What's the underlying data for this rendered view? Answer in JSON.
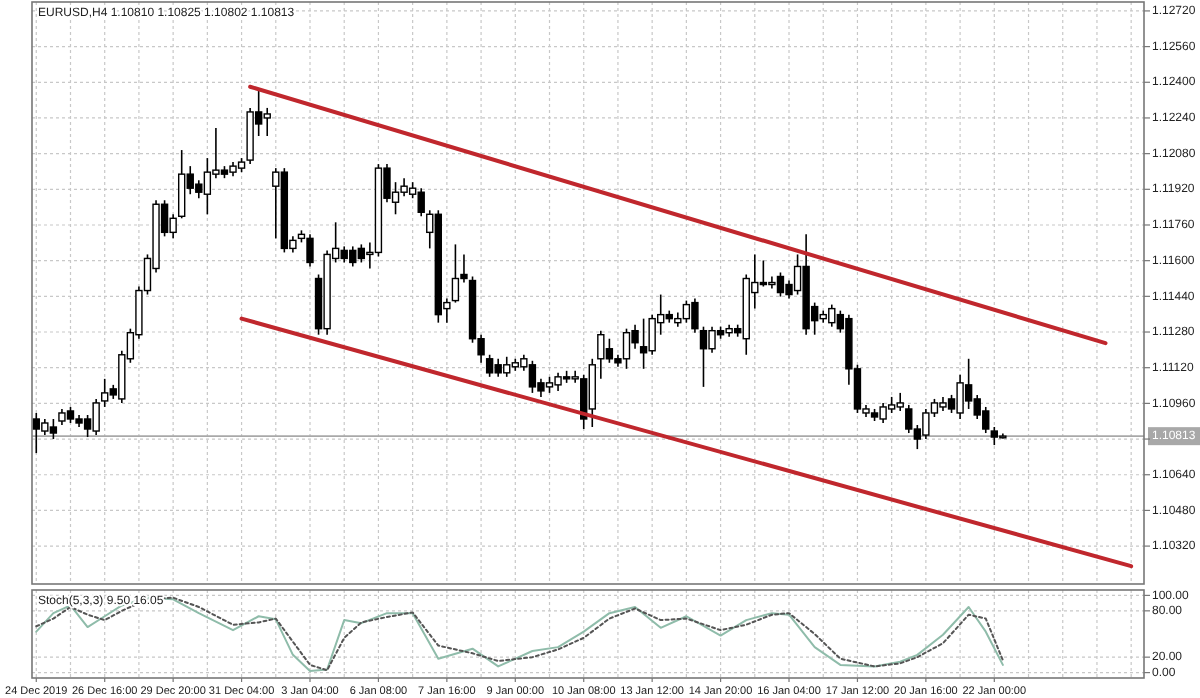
{
  "chart_data": [
    {
      "type": "candlestick",
      "title": "EURUSD,H4 1.10810 1.10825 1.10802 1.10813",
      "categories": [
        null,
        null,
        null,
        null,
        null,
        null,
        null,
        null,
        null,
        null,
        null,
        null,
        null,
        null,
        null,
        null,
        null,
        null,
        null,
        null,
        null,
        null,
        null,
        null,
        null,
        null,
        null,
        null,
        null,
        null,
        null,
        null,
        null,
        null,
        null,
        null,
        null,
        null,
        null,
        null,
        null,
        null,
        null,
        null,
        null,
        null,
        null,
        null,
        null,
        null,
        null,
        null,
        null,
        null,
        null,
        null,
        null,
        null,
        null,
        null,
        null,
        null,
        null,
        null,
        null,
        null,
        null,
        null,
        null,
        null,
        null,
        null,
        null,
        null,
        null,
        null,
        null,
        null,
        null,
        null,
        null,
        null,
        null,
        null,
        null,
        null,
        null,
        null,
        null,
        null,
        null,
        null,
        null,
        null,
        null,
        null,
        null,
        null,
        null,
        null,
        null,
        null,
        null,
        null,
        null,
        null,
        null,
        null,
        null,
        null,
        null,
        null,
        null,
        null,
        null,
        null,
        null,
        null,
        null,
        null,
        null,
        null,
        null,
        null,
        null,
        null,
        null,
        null,
        null,
        null
      ],
      "ohlc": [
        [
          1.1089,
          1.10917,
          1.10737,
          1.10845
        ],
        [
          1.10836,
          1.1089,
          1.10818,
          1.10872
        ],
        [
          1.10854,
          1.1089,
          1.108,
          1.10827
        ],
        [
          1.10881,
          1.10935,
          1.10863,
          1.10917
        ],
        [
          1.10926,
          1.10944,
          1.10872,
          1.1089
        ],
        [
          1.1089,
          1.10908,
          1.10854,
          1.10872
        ],
        [
          1.1089,
          1.10908,
          1.10809,
          1.10845
        ],
        [
          1.10836,
          1.1098,
          1.10818,
          1.10962
        ],
        [
          1.10971,
          1.1107,
          1.10944,
          1.11007
        ],
        [
          1.11025,
          1.11043,
          1.1098,
          1.10998
        ],
        [
          1.1098,
          1.11196,
          1.10962,
          1.11178
        ],
        [
          1.1116,
          1.11295,
          1.11142,
          1.11277
        ],
        [
          1.11268,
          1.11484,
          1.1125,
          1.11466
        ],
        [
          1.11466,
          1.11628,
          1.11448,
          1.1161
        ],
        [
          1.11565,
          1.11871,
          1.11547,
          1.11853
        ],
        [
          1.11853,
          1.11871,
          1.11709,
          1.11727
        ],
        [
          1.11727,
          1.11808,
          1.117,
          1.1179
        ],
        [
          1.11799,
          1.12096,
          1.1179,
          1.11988
        ],
        [
          1.11988,
          1.12024,
          1.11898,
          1.11925
        ],
        [
          1.11943,
          1.11961,
          1.1188,
          1.11907
        ],
        [
          1.11898,
          1.1206,
          1.11808,
          1.11997
        ],
        [
          1.11988,
          1.12195,
          1.1197,
          1.12006
        ],
        [
          1.12006,
          1.12024,
          1.1197,
          1.11988
        ],
        [
          1.11997,
          1.12042,
          1.11979,
          1.12024
        ],
        [
          1.12015,
          1.1206,
          1.11997,
          1.12042
        ],
        [
          1.12051,
          1.12285,
          1.12033,
          1.12267
        ],
        [
          1.12267,
          1.12366,
          1.12159,
          1.12213
        ],
        [
          1.1224,
          1.12285,
          1.12159,
          1.12258
        ],
        [
          1.11934,
          1.12015,
          1.117,
          1.11997
        ],
        [
          1.11997,
          1.12015,
          1.11637,
          1.11655
        ],
        [
          1.11655,
          1.11709,
          1.11637,
          1.11691
        ],
        [
          1.117,
          1.11736,
          1.11682,
          1.11718
        ],
        [
          1.117,
          1.11718,
          1.11574,
          1.11592
        ],
        [
          1.1152,
          1.11538,
          1.11268,
          1.11295
        ],
        [
          1.11295,
          1.11646,
          1.11268,
          1.11628
        ],
        [
          1.1161,
          1.11772,
          1.11592,
          1.11655
        ],
        [
          1.11646,
          1.11664,
          1.11592,
          1.1161
        ],
        [
          1.11646,
          1.11664,
          1.11574,
          1.11592
        ],
        [
          1.11655,
          1.11673,
          1.11592,
          1.1161
        ],
        [
          1.11628,
          1.11682,
          1.11565,
          1.11637
        ],
        [
          1.11637,
          1.12033,
          1.11619,
          1.12015
        ],
        [
          1.12015,
          1.12033,
          1.11862,
          1.1188
        ],
        [
          1.11862,
          1.11952,
          1.11808,
          1.11907
        ],
        [
          1.11907,
          1.1197,
          1.11889,
          1.11934
        ],
        [
          1.11898,
          1.11952,
          1.1188,
          1.11925
        ],
        [
          1.11907,
          1.11925,
          1.11799,
          1.11817
        ],
        [
          1.11727,
          1.11826,
          1.11655,
          1.11808
        ],
        [
          1.11808,
          1.11826,
          1.11322,
          1.11358
        ],
        [
          1.11385,
          1.1143,
          1.11322,
          1.11412
        ],
        [
          1.11421,
          1.11673,
          1.11412,
          1.1152
        ],
        [
          1.11538,
          1.11628,
          1.11502,
          1.1152
        ],
        [
          1.11511,
          1.11529,
          1.11232,
          1.1125
        ],
        [
          1.1125,
          1.11268,
          1.11142,
          1.11178
        ],
        [
          1.1116,
          1.11178,
          1.11079,
          1.11097
        ],
        [
          1.11133,
          1.1116,
          1.11079,
          1.11097
        ],
        [
          1.11097,
          1.11169,
          1.11079,
          1.11133
        ],
        [
          1.11124,
          1.1116,
          1.11106,
          1.11142
        ],
        [
          1.11124,
          1.11178,
          1.11106,
          1.1116
        ],
        [
          1.11133,
          1.11151,
          1.11007,
          1.11034
        ],
        [
          1.11052,
          1.1107,
          1.10989,
          1.11016
        ],
        [
          1.11034,
          1.11079,
          1.11007,
          1.11052
        ],
        [
          1.11043,
          1.11097,
          1.11016,
          1.11079
        ],
        [
          1.11079,
          1.11106,
          1.11052,
          1.1107
        ],
        [
          1.1107,
          1.11106,
          1.11052,
          1.11079
        ],
        [
          1.1107,
          1.11088,
          1.10845,
          1.1089
        ],
        [
          1.10935,
          1.1116,
          1.10854,
          1.11133
        ],
        [
          1.1116,
          1.11286,
          1.1107,
          1.11268
        ],
        [
          1.11205,
          1.1125,
          1.11142,
          1.1116
        ],
        [
          1.1116,
          1.11178,
          1.11124,
          1.11142
        ],
        [
          1.1116,
          1.11295,
          1.11115,
          1.11277
        ],
        [
          1.11286,
          1.11313,
          1.11205,
          1.11232
        ],
        [
          1.11214,
          1.1134,
          1.11115,
          1.11187
        ],
        [
          1.11196,
          1.11358,
          1.11178,
          1.1134
        ],
        [
          1.11322,
          1.11448,
          1.11268,
          1.11358
        ],
        [
          1.11358,
          1.11376,
          1.11322,
          1.1134
        ],
        [
          1.11322,
          1.11367,
          1.11304,
          1.1134
        ],
        [
          1.1134,
          1.11421,
          1.11322,
          1.11403
        ],
        [
          1.11412,
          1.1143,
          1.11277,
          1.11295
        ],
        [
          1.11286,
          1.11304,
          1.11034,
          1.11205
        ],
        [
          1.11205,
          1.11304,
          1.11187,
          1.11286
        ],
        [
          1.11286,
          1.11304,
          1.1125,
          1.11268
        ],
        [
          1.11277,
          1.11313,
          1.11259,
          1.11295
        ],
        [
          1.11295,
          1.11313,
          1.11259,
          1.11277
        ],
        [
          1.1125,
          1.11538,
          1.11178,
          1.1152
        ],
        [
          1.11457,
          1.11628,
          1.11385,
          1.11502
        ],
        [
          1.11502,
          1.11601,
          1.11484,
          1.11493
        ],
        [
          1.11493,
          1.11529,
          1.11475,
          1.11502
        ],
        [
          1.11529,
          1.11547,
          1.11439,
          1.11457
        ],
        [
          1.11493,
          1.11511,
          1.1143,
          1.11448
        ],
        [
          1.11466,
          1.11628,
          1.11448,
          1.11574
        ],
        [
          1.11574,
          1.11718,
          1.11268,
          1.11295
        ],
        [
          1.11394,
          1.11412,
          1.11268,
          1.11331
        ],
        [
          1.1134,
          1.11376,
          1.11322,
          1.11358
        ],
        [
          1.11322,
          1.11403,
          1.11304,
          1.11385
        ],
        [
          1.11358,
          1.11376,
          1.11277,
          1.11295
        ],
        [
          1.1134,
          1.11358,
          1.11043,
          1.11115
        ],
        [
          1.11115,
          1.11133,
          1.10917,
          1.10935
        ],
        [
          1.10917,
          1.10953,
          1.10899,
          1.10935
        ],
        [
          1.10917,
          1.10935,
          1.10881,
          1.10899
        ],
        [
          1.1089,
          1.10962,
          1.10872,
          1.10944
        ],
        [
          1.10935,
          1.10989,
          1.10917,
          1.10953
        ],
        [
          1.10944,
          1.11007,
          1.10926,
          1.10962
        ],
        [
          1.10935,
          1.10953,
          1.10827,
          1.10845
        ],
        [
          1.10845,
          1.10863,
          1.10755,
          1.108
        ],
        [
          1.10818,
          1.10935,
          1.108,
          1.10917
        ],
        [
          1.10917,
          1.1098,
          1.10899,
          1.10962
        ],
        [
          1.10944,
          1.10989,
          1.10926,
          1.10962
        ],
        [
          1.1098,
          1.10998,
          1.10917,
          1.10935
        ],
        [
          1.10917,
          1.11088,
          1.1089,
          1.11052
        ],
        [
          1.11043,
          1.1116,
          1.10935,
          1.10971
        ],
        [
          1.1098,
          1.10998,
          1.1089,
          1.10908
        ],
        [
          1.10926,
          1.10944,
          1.10827,
          1.10845
        ],
        [
          1.10836,
          1.10854,
          1.10773,
          1.10809
        ],
        [
          1.1081,
          1.10825,
          1.10802,
          1.10813
        ],
        null,
        null,
        null,
        null,
        null,
        null,
        null,
        null,
        null,
        null,
        null,
        null,
        null,
        null,
        null,
        null
      ],
      "series": [
        {
          "type": "line",
          "color": "#c0272d",
          "values": [
            null,
            null,
            null,
            null,
            null,
            null,
            null,
            null,
            null,
            null,
            null,
            null,
            null,
            null,
            null,
            null,
            null,
            null,
            null,
            null,
            null,
            null,
            null,
            null,
            null,
            1.1238,
            null,
            null,
            null,
            null,
            null,
            null,
            null,
            null,
            null,
            null,
            null,
            null,
            null,
            null,
            null,
            null,
            null,
            null,
            null,
            null,
            null,
            null,
            null,
            null,
            null,
            null,
            null,
            null,
            null,
            null,
            null,
            null,
            null,
            null,
            null,
            null,
            null,
            null,
            null,
            null,
            null,
            null,
            null,
            null,
            null,
            null,
            null,
            null,
            null,
            null,
            null,
            null,
            null,
            null,
            null,
            null,
            null,
            null,
            null,
            null,
            null,
            null,
            null,
            null,
            null,
            null,
            null,
            null,
            null,
            null,
            null,
            null,
            null,
            null,
            null,
            null,
            null,
            null,
            null,
            null,
            null,
            null,
            null,
            null,
            null,
            null,
            null,
            null,
            null,
            null,
            null,
            null,
            null,
            null,
            null,
            null,
            null,
            null,
            null,
            1.1123,
            null,
            null,
            null,
            null
          ]
        },
        {
          "type": "line",
          "color": "#c0272d",
          "values": [
            null,
            null,
            null,
            null,
            null,
            null,
            null,
            null,
            null,
            null,
            null,
            null,
            null,
            null,
            null,
            null,
            null,
            null,
            null,
            null,
            null,
            null,
            null,
            null,
            1.1134,
            null,
            null,
            null,
            null,
            null,
            null,
            null,
            null,
            null,
            null,
            null,
            null,
            null,
            null,
            null,
            null,
            null,
            null,
            null,
            null,
            null,
            null,
            null,
            null,
            null,
            null,
            null,
            null,
            null,
            null,
            null,
            null,
            null,
            null,
            null,
            null,
            null,
            null,
            null,
            null,
            null,
            null,
            null,
            null,
            null,
            null,
            null,
            null,
            null,
            null,
            null,
            null,
            null,
            null,
            null,
            null,
            null,
            null,
            null,
            null,
            null,
            null,
            null,
            null,
            null,
            null,
            null,
            null,
            null,
            null,
            null,
            null,
            null,
            null,
            null,
            null,
            null,
            null,
            null,
            null,
            null,
            null,
            null,
            null,
            null,
            null,
            null,
            null,
            null,
            null,
            null,
            null,
            null,
            null,
            null,
            null,
            null,
            null,
            null,
            null,
            null,
            null,
            null,
            1.1023,
            null
          ]
        }
      ],
      "ref_lines": [
        {
          "axis": "y",
          "value": 1.10813,
          "label": "1.10813",
          "color": "#a8a8a8"
        }
      ],
      "ylim": [
        1.1015,
        1.1276
      ],
      "yticks": [
        {
          "value": 1.1032,
          "label": "1.10320"
        },
        {
          "value": 1.1048,
          "label": "1.10480"
        },
        {
          "value": 1.1064,
          "label": "1.10640"
        },
        {
          "value": 1.108,
          "label": null
        },
        {
          "value": 1.1096,
          "label": "1.10960"
        },
        {
          "value": 1.1112,
          "label": "1.11120"
        },
        {
          "value": 1.1128,
          "label": "1.11280"
        },
        {
          "value": 1.1144,
          "label": "1.11440"
        },
        {
          "value": 1.116,
          "label": "1.11600"
        },
        {
          "value": 1.1176,
          "label": "1.11760"
        },
        {
          "value": 1.1192,
          "label": "1.11920"
        },
        {
          "value": 1.1208,
          "label": "1.12080"
        },
        {
          "value": 1.1224,
          "label": "1.12240"
        },
        {
          "value": 1.124,
          "label": "1.12400"
        },
        {
          "value": 1.1256,
          "label": "1.12560"
        },
        {
          "value": 1.1272,
          "label": "1.12720"
        }
      ],
      "grid": true,
      "tick_labels": "y"
    },
    {
      "type": "line",
      "title": "Stoch(5,3,3) 9.50 16.05",
      "categories": [
        "24 Dec 2019",
        null,
        null,
        null,
        null,
        null,
        null,
        null,
        "26 Dec 16:00",
        null,
        null,
        null,
        null,
        null,
        null,
        null,
        "29 Dec 20:00",
        null,
        null,
        null,
        null,
        null,
        null,
        null,
        "31 Dec 04:00",
        null,
        null,
        null,
        null,
        null,
        null,
        null,
        "3 Jan 04:00",
        null,
        null,
        null,
        null,
        null,
        null,
        null,
        "6 Jan 08:00",
        null,
        null,
        null,
        null,
        null,
        null,
        null,
        "7 Jan 16:00",
        null,
        null,
        null,
        null,
        null,
        null,
        null,
        "9 Jan 00:00",
        null,
        null,
        null,
        null,
        null,
        null,
        null,
        "10 Jan 08:00",
        null,
        null,
        null,
        null,
        null,
        null,
        null,
        "13 Jan 12:00",
        null,
        null,
        null,
        null,
        null,
        null,
        null,
        "14 Jan 20:00",
        null,
        null,
        null,
        null,
        null,
        null,
        null,
        "16 Jan 04:00",
        null,
        null,
        null,
        null,
        null,
        null,
        null,
        "17 Jan 12:00",
        null,
        null,
        null,
        null,
        null,
        null,
        null,
        "20 Jan 16:00",
        null,
        null,
        null,
        null,
        null,
        null,
        null,
        "22 Jan 00:00",
        null,
        null,
        null,
        null,
        null,
        null,
        null,
        null,
        null,
        null,
        null,
        null,
        null,
        null,
        null,
        null,
        null
      ],
      "series": [
        {
          "color": "#8fbcaa",
          "line_style": "solid",
          "values": [
            53,
            null,
            77,
            null,
            87,
            null,
            59,
            null,
            73,
            null,
            87,
            null,
            null,
            97,
            null,
            null,
            95,
            null,
            null,
            77,
            null,
            null,
            null,
            55,
            null,
            null,
            73,
            null,
            69,
            null,
            23,
            null,
            2,
            null,
            4,
            null,
            68,
            null,
            64,
            null,
            null,
            77,
            null,
            null,
            77,
            null,
            null,
            18,
            null,
            null,
            null,
            31,
            null,
            null,
            8,
            null,
            null,
            null,
            28,
            null,
            null,
            33,
            null,
            null,
            53,
            null,
            null,
            77,
            null,
            null,
            85,
            null,
            null,
            58,
            null,
            null,
            73,
            null,
            null,
            null,
            48,
            null,
            null,
            68,
            null,
            null,
            77,
            null,
            75,
            null,
            null,
            33,
            null,
            null,
            10,
            null,
            null,
            null,
            8,
            null,
            null,
            14,
            null,
            23,
            null,
            null,
            49,
            null,
            null,
            85,
            null,
            53,
            null,
            10,
            null,
            null,
            null,
            null,
            null,
            null,
            null,
            null,
            null,
            null,
            null,
            null,
            null,
            null,
            null,
            null
          ]
        },
        {
          "color": "#555555",
          "line_style": "dotted",
          "values": [
            60,
            null,
            70,
            null,
            85,
            null,
            75,
            null,
            68,
            null,
            80,
            null,
            null,
            95,
            null,
            null,
            97,
            null,
            null,
            85,
            null,
            null,
            null,
            62,
            null,
            null,
            65,
            null,
            70,
            null,
            40,
            null,
            10,
            null,
            3,
            null,
            45,
            null,
            65,
            null,
            null,
            72,
            null,
            null,
            78,
            null,
            null,
            35,
            null,
            null,
            null,
            25,
            null,
            null,
            15,
            null,
            null,
            null,
            20,
            null,
            null,
            30,
            null,
            null,
            45,
            null,
            null,
            70,
            null,
            null,
            83,
            null,
            null,
            68,
            null,
            null,
            70,
            null,
            null,
            null,
            55,
            null,
            null,
            62,
            null,
            null,
            75,
            null,
            77,
            null,
            null,
            50,
            null,
            null,
            18,
            null,
            null,
            null,
            8,
            null,
            null,
            12,
            null,
            20,
            null,
            null,
            38,
            null,
            null,
            75,
            null,
            70,
            null,
            16,
            null,
            null,
            null,
            null,
            null,
            null,
            null,
            null,
            null,
            null,
            null,
            null,
            null,
            null,
            null,
            null
          ]
        }
      ],
      "ylim": [
        -7,
        107
      ],
      "yticks": [
        {
          "value": 0,
          "label": "0.00"
        },
        {
          "value": 20,
          "label": "20.00"
        },
        {
          "value": 80,
          "label": "80.00"
        },
        {
          "value": 100,
          "label": "100.00"
        }
      ],
      "grid": true
    }
  ]
}
